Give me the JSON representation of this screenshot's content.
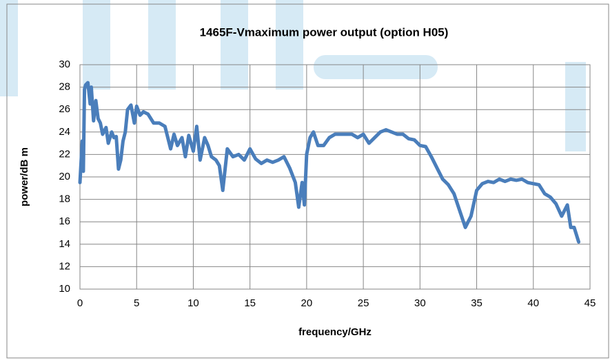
{
  "chart_data": {
    "type": "line",
    "title": "1465F-Vmaximum power output (option H05)",
    "x_label": "frequency/GHz",
    "y_label": "power/dB m",
    "xlim": [
      0,
      45
    ],
    "xticks": [
      0,
      5,
      10,
      15,
      20,
      25,
      30,
      35,
      40,
      45
    ],
    "ylim": [
      10,
      30
    ],
    "yticks": [
      10,
      12,
      14,
      16,
      18,
      20,
      22,
      24,
      26,
      28,
      30
    ],
    "grid": true,
    "series": [
      {
        "name": "power",
        "color": "#4a7ebb",
        "x": [
          0,
          0.2,
          0.3,
          0.4,
          0.5,
          0.7,
          0.9,
          1.0,
          1.2,
          1.4,
          1.6,
          1.8,
          2.0,
          2.3,
          2.5,
          2.8,
          3.0,
          3.2,
          3.4,
          3.6,
          3.8,
          4.0,
          4.2,
          4.5,
          4.8,
          5.0,
          5.3,
          5.6,
          6.0,
          6.5,
          7.0,
          7.5,
          8.0,
          8.3,
          8.6,
          9.0,
          9.3,
          9.6,
          10.0,
          10.3,
          10.6,
          11.0,
          11.3,
          11.6,
          12.0,
          12.3,
          12.6,
          13.0,
          13.5,
          14.0,
          14.5,
          15.0,
          15.5,
          16.0,
          16.5,
          17.0,
          17.5,
          18.0,
          18.5,
          19.0,
          19.3,
          19.6,
          19.8,
          20.0,
          20.3,
          20.6,
          21.0,
          21.5,
          22.0,
          22.5,
          23.0,
          23.5,
          24.0,
          24.5,
          25.0,
          25.5,
          26.0,
          26.5,
          27.0,
          27.5,
          28.0,
          28.5,
          29.0,
          29.5,
          30.0,
          30.5,
          31.0,
          31.5,
          32.0,
          32.5,
          33.0,
          33.5,
          34.0,
          34.5,
          35.0,
          35.5,
          36.0,
          36.5,
          37.0,
          37.5,
          38.0,
          38.5,
          39.0,
          39.5,
          40.0,
          40.5,
          41.0,
          41.5,
          42.0,
          42.5,
          43.0,
          43.3,
          43.6,
          44.0
        ],
        "values": [
          19.5,
          23.2,
          20.5,
          27.8,
          28.2,
          28.4,
          26.5,
          28,
          25,
          26.8,
          25.2,
          24.8,
          23.8,
          24.4,
          23,
          24,
          23.5,
          23.6,
          20.7,
          21.5,
          23.2,
          24,
          26,
          26.4,
          24.8,
          26.3,
          25.5,
          25.8,
          25.6,
          24.8,
          24.8,
          24.5,
          22.5,
          23.8,
          22.8,
          23.5,
          21.8,
          23.7,
          22.3,
          24.5,
          21.5,
          23.5,
          22.8,
          21.8,
          21.5,
          21,
          18.8,
          22.5,
          21.8,
          22,
          21.5,
          22.5,
          21.6,
          21.2,
          21.5,
          21.3,
          21.5,
          21.8,
          20.8,
          19.5,
          17.3,
          19.5,
          17.5,
          22,
          23.5,
          24,
          22.8,
          22.8,
          23.5,
          23.8,
          23.8,
          23.8,
          23.8,
          23.5,
          23.8,
          23,
          23.5,
          24,
          24.2,
          24,
          23.8,
          23.8,
          23.4,
          23.3,
          22.8,
          22.7,
          21.8,
          20.8,
          19.8,
          19.3,
          18.5,
          17,
          15.5,
          16.5,
          18.8,
          19.4,
          19.6,
          19.5,
          19.8,
          19.6,
          19.8,
          19.7,
          19.8,
          19.5,
          19.4,
          19.3,
          18.5,
          18.2,
          17.6,
          16.5,
          17.5,
          15.5,
          15.5,
          14.2
        ]
      }
    ]
  }
}
